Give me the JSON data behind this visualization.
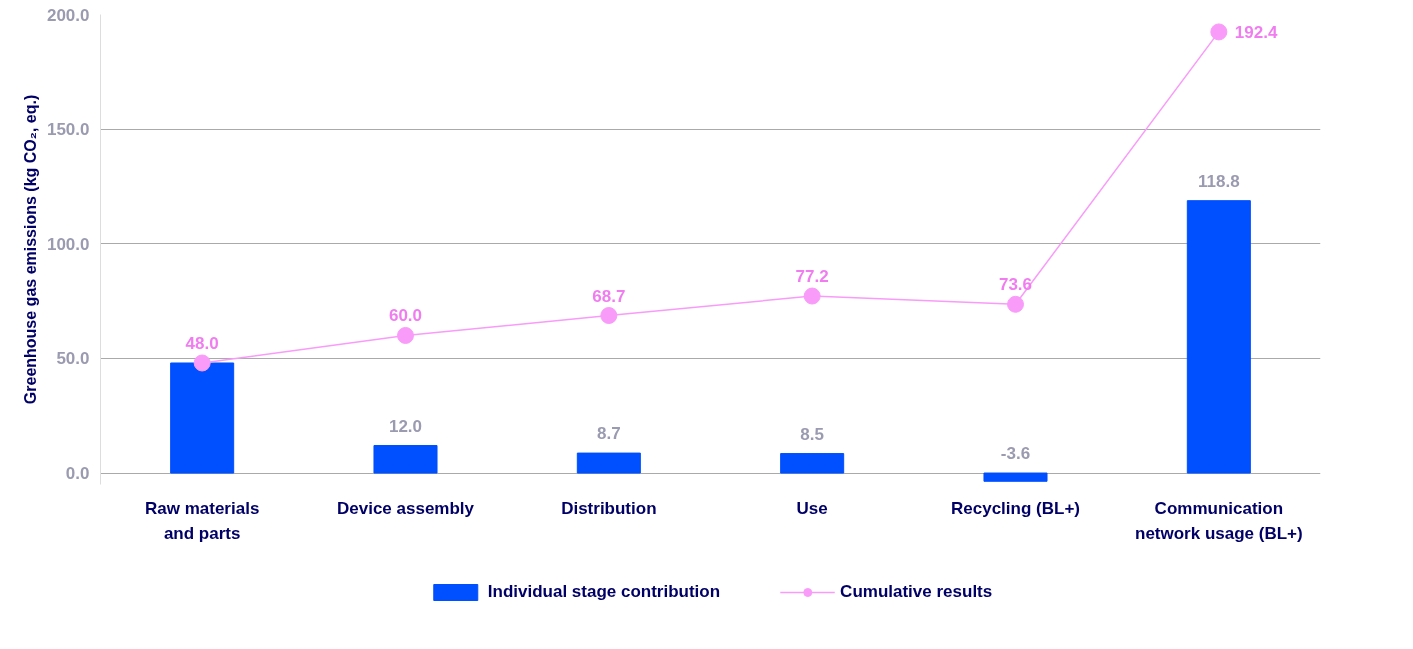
{
  "chart_data": {
    "type": "bar",
    "ylabel": "Greenhouse gas emissions (kg CO₂, eq.)",
    "categories": [
      "Raw materials and parts",
      "Device assembly",
      "Distribution",
      "Use",
      "Recycling (BL+)",
      "Communication network usage (BL+)"
    ],
    "series": [
      {
        "name": "Individual stage contribution",
        "color": "#0050ff",
        "values": [
          48.0,
          12.0,
          8.7,
          8.5,
          -3.6,
          118.8
        ],
        "value_labels": [
          null,
          "12.0",
          "8.7",
          "8.5",
          "-3.6",
          "118.8"
        ]
      },
      {
        "name": "Cumulative results",
        "type": "line",
        "color": "#f99cf9",
        "values": [
          48.0,
          60.0,
          68.7,
          77.2,
          73.6,
          192.4
        ],
        "value_labels": [
          "48.0",
          "60.0",
          "68.7",
          "77.2",
          "73.6",
          "192.4"
        ]
      }
    ],
    "ylim": [
      -5,
      200
    ],
    "yticks": [
      {
        "value": 0,
        "label": "0.0"
      },
      {
        "value": 50,
        "label": "50.0"
      },
      {
        "value": 100,
        "label": "100.0"
      },
      {
        "value": 150,
        "label": "150.0"
      },
      {
        "value": 200,
        "label": "200.0"
      }
    ],
    "grid": "y",
    "legend": "bottom",
    "marker": "circle"
  }
}
